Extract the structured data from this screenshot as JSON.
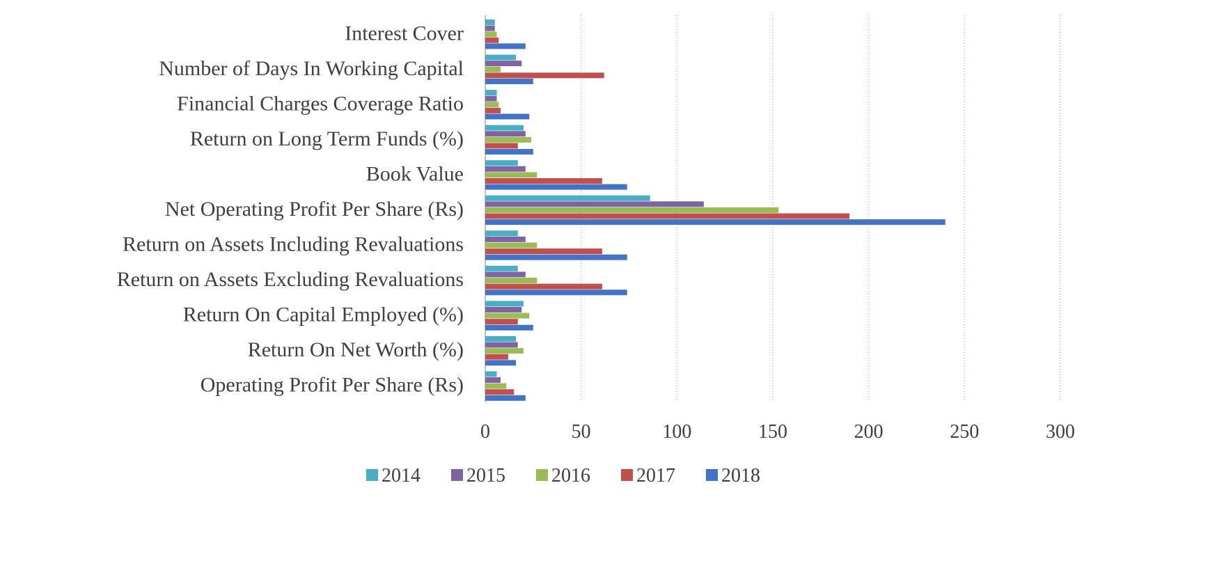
{
  "chart_data": {
    "type": "bar",
    "orientation": "horizontal",
    "categories": [
      "Interest Cover",
      "Number of Days In Working Capital",
      "Financial Charges Coverage Ratio",
      "Return on Long Term Funds (%)",
      "Book Value",
      "Net Operating Profit Per Share (Rs)",
      "Return on Assets Including Revaluations",
      "Return on Assets Excluding Revaluations",
      "Return On Capital Employed (%)",
      "Return On Net Worth (%)",
      "Operating Profit Per Share (Rs)"
    ],
    "series": [
      {
        "name": "2014",
        "color": "#4BACC6",
        "values": [
          5,
          16,
          6,
          20,
          17,
          86,
          17,
          17,
          20,
          16,
          6
        ]
      },
      {
        "name": "2015",
        "color": "#8064A2",
        "values": [
          5,
          19,
          6,
          21,
          21,
          114,
          21,
          21,
          19,
          17,
          8
        ]
      },
      {
        "name": "2016",
        "color": "#9BBB59",
        "values": [
          6,
          8,
          7,
          24,
          27,
          153,
          27,
          27,
          23,
          20,
          11
        ]
      },
      {
        "name": "2017",
        "color": "#C0504D",
        "values": [
          7,
          62,
          8,
          17,
          61,
          190,
          61,
          61,
          17,
          12,
          15
        ]
      },
      {
        "name": "2018",
        "color": "#4472C4",
        "values": [
          21,
          25,
          23,
          25,
          74,
          240,
          74,
          74,
          25,
          16,
          21
        ]
      }
    ],
    "xlim": [
      0,
      300
    ],
    "xticks": [
      "0",
      "50",
      "100",
      "150",
      "200",
      "250",
      "300"
    ],
    "grid": "vertical",
    "legend_position": "bottom"
  }
}
